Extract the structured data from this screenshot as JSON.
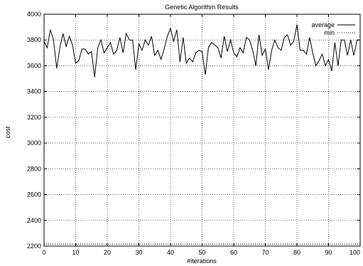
{
  "chart_data": {
    "type": "line",
    "title": "Genetic Algorithm Results",
    "xlabel": "#iterations",
    "ylabel": "cost",
    "xlim": [
      0,
      100
    ],
    "ylim": [
      2200,
      4000
    ],
    "xticks": [
      0,
      10,
      20,
      30,
      40,
      50,
      60,
      70,
      80,
      90,
      100
    ],
    "yticks": [
      2200,
      2400,
      2600,
      2800,
      3000,
      3200,
      3400,
      3600,
      3800,
      4000
    ],
    "grid": true,
    "legend_position": "top-right",
    "series": [
      {
        "name": "average",
        "style": "solid",
        "color": "#000000",
        "x": [
          0,
          1,
          2,
          3,
          4,
          5,
          6,
          7,
          8,
          9,
          10,
          11,
          12,
          13,
          14,
          15,
          16,
          17,
          18,
          19,
          20,
          21,
          22,
          23,
          24,
          25,
          26,
          27,
          28,
          29,
          30,
          31,
          32,
          33,
          34,
          35,
          36,
          37,
          38,
          39,
          40,
          41,
          42,
          43,
          44,
          45,
          46,
          47,
          48,
          49,
          50,
          51,
          52,
          53,
          54,
          55,
          56,
          57,
          58,
          59,
          60,
          61,
          62,
          63,
          64,
          65,
          66,
          67,
          68,
          69,
          70,
          71,
          72,
          73,
          74,
          75,
          76,
          77,
          78,
          79,
          80,
          81,
          82,
          83,
          84,
          85,
          86,
          87,
          88,
          89,
          90,
          91,
          92,
          93,
          94,
          95,
          96,
          97,
          98,
          99,
          100
        ],
        "y": [
          3790,
          3740,
          3880,
          3800,
          3580,
          3740,
          3850,
          3750,
          3830,
          3760,
          3620,
          3640,
          3730,
          3730,
          3690,
          3710,
          3510,
          3740,
          3800,
          3700,
          3740,
          3780,
          3690,
          3720,
          3820,
          3700,
          3850,
          3800,
          3800,
          3570,
          3770,
          3720,
          3800,
          3760,
          3830,
          3680,
          3720,
          3650,
          3730,
          3830,
          3890,
          3790,
          3880,
          3630,
          3820,
          3620,
          3660,
          3630,
          3700,
          3720,
          3710,
          3530,
          3740,
          3780,
          3760,
          3740,
          3660,
          3830,
          3710,
          3800,
          3700,
          3670,
          3740,
          3700,
          3820,
          3800,
          3720,
          3600,
          3840,
          3680,
          3730,
          3570,
          3720,
          3800,
          3740,
          3720,
          3820,
          3840,
          3760,
          3790,
          3920,
          3720,
          3720,
          3690,
          3820,
          3700,
          3600,
          3640,
          3690,
          3600,
          3650,
          3560,
          3780,
          3600,
          3800,
          3800,
          3680,
          3800,
          3680,
          3800,
          3800
        ]
      },
      {
        "name": "min",
        "style": "dotted",
        "color": "#000000",
        "x": [
          0,
          100
        ],
        "y": [
          2215,
          2215
        ]
      }
    ]
  }
}
